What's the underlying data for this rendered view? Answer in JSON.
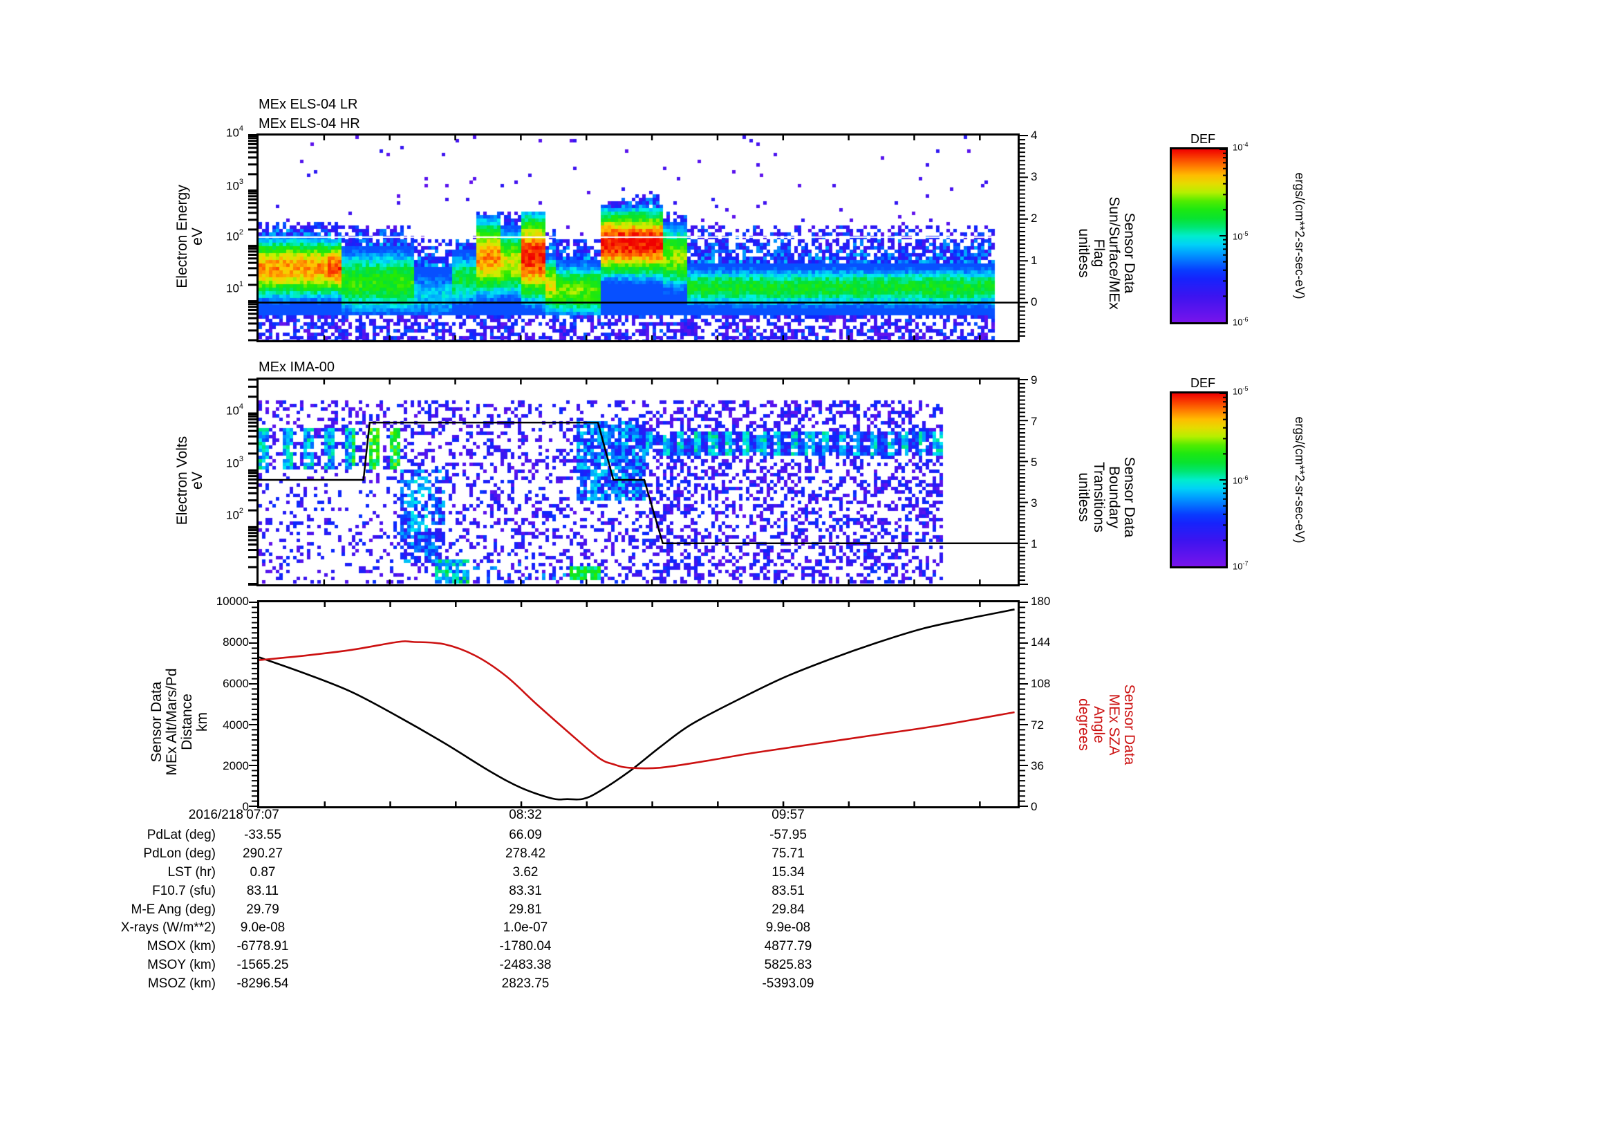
{
  "chart_data": [
    {
      "id": "els",
      "type": "heatmap",
      "titles": [
        "MEx ELS-04 LR",
        "MEx ELS-04 HR"
      ],
      "ylabel": [
        "Electron Energy",
        "eV"
      ],
      "yscale": "log",
      "ylim": [
        2,
        10000
      ],
      "yticks": [
        {
          "base": "10",
          "exp": "1",
          "value": 10
        },
        {
          "base": "10",
          "exp": "2",
          "value": 100
        },
        {
          "base": "10",
          "exp": "3",
          "value": 1000
        },
        {
          "base": "10",
          "exp": "4",
          "value": 10000
        }
      ],
      "y2label": [
        "Sensor Data",
        "Sun/Surface/MEx",
        "Flag",
        "unitless"
      ],
      "y2lim": [
        -0.9,
        4
      ],
      "y2ticks": [
        "0",
        "1",
        "2",
        "3",
        "4"
      ],
      "flag_line": {
        "value": 0,
        "color": "#000000"
      },
      "white_line_energy": 150,
      "colorbar": {
        "title": "DEF",
        "min_label": {
          "base": "10",
          "exp": "-6"
        },
        "mid_label": {
          "base": "10",
          "exp": "-5"
        },
        "max_label": {
          "base": "10",
          "exp": "-4"
        },
        "units": "ergs/(cm**2-sr-sec-eV)"
      },
      "features": [
        {
          "t_start": "07:07",
          "t_end": "07:30",
          "desc": "hot core ~40 eV, yellow/orange"
        },
        {
          "t_start": "07:30",
          "t_end": "07:52",
          "desc": "green band 8-100 eV"
        },
        {
          "t_start": "07:52",
          "t_end": "08:05",
          "desc": "depleted, sparse blue"
        },
        {
          "t_start": "08:05",
          "t_end": "08:25",
          "desc": "red intense ~100-200 eV bursts"
        },
        {
          "t_start": "08:25",
          "t_end": "08:45",
          "desc": "green/yellow lower energy"
        },
        {
          "t_start": "08:48",
          "t_end": "09:05",
          "desc": "red intense 60-300 eV, peak ~1000 eV"
        },
        {
          "t_start": "09:05",
          "t_end": "11:12",
          "desc": "steady green band 8-40 eV, blue above"
        }
      ]
    },
    {
      "id": "ima",
      "type": "heatmap",
      "titles": [
        "MEx IMA-00"
      ],
      "ylabel": [
        "Electron Volts",
        "eV"
      ],
      "yscale": "log",
      "ylim": [
        10,
        40000
      ],
      "yticks": [
        {
          "base": "10",
          "exp": "2",
          "value": 100
        },
        {
          "base": "10",
          "exp": "3",
          "value": 1000
        },
        {
          "base": "10",
          "exp": "4",
          "value": 10000
        }
      ],
      "y2label": [
        "Sensor Data",
        "Boundary",
        "Transitions",
        "unitless"
      ],
      "y2lim": [
        -1,
        9
      ],
      "y2ticks": [
        "1",
        "3",
        "5",
        "7",
        "9"
      ],
      "boundary_line": {
        "color": "#000000",
        "points": [
          [
            "07:07",
            4.1
          ],
          [
            "07:41",
            4.1
          ],
          [
            "07:43",
            6.9
          ],
          [
            "08:57",
            6.9
          ],
          [
            "09:02",
            4.1
          ],
          [
            "09:12",
            4.1
          ],
          [
            "09:18",
            1.0
          ],
          [
            "11:14",
            1.0
          ]
        ]
      },
      "colorbar": {
        "title": "DEF",
        "min_label": {
          "base": "10",
          "exp": "-7"
        },
        "mid_label": {
          "base": "10",
          "exp": "-6"
        },
        "max_label": {
          "base": "10",
          "exp": "-5"
        },
        "units": "ergs/(cm**2-sr-sec-eV)"
      }
    },
    {
      "id": "orbit",
      "type": "line",
      "ylabel": [
        "Sensor Data",
        "MEx Alt/Mars/Pd",
        "Distance",
        "km"
      ],
      "ylim": [
        0,
        10000
      ],
      "yticks": [
        "0",
        "2000",
        "4000",
        "6000",
        "8000",
        "10000"
      ],
      "y2label": [
        "Sensor Data",
        "MEx SZA",
        "Angle",
        "degrees"
      ],
      "y2lim": [
        0,
        180
      ],
      "y2ticks": [
        "0",
        "36",
        "72",
        "108",
        "144",
        "180"
      ],
      "xlabels": [
        "07:07",
        "08:32",
        "09:57"
      ],
      "series": [
        {
          "name": "MEx Alt/Mars/Pd Distance (km)",
          "color": "#000000",
          "axis": "left",
          "x_min": [
            0,
            15,
            30,
            45,
            60,
            75,
            85,
            95,
            100,
            105,
            110,
            120,
            130,
            140,
            155,
            170,
            185,
            200,
            215,
            230,
            245
          ],
          "values": [
            7300,
            6500,
            5600,
            4400,
            3100,
            1700,
            900,
            380,
            350,
            360,
            700,
            1700,
            2900,
            4000,
            5200,
            6300,
            7200,
            8000,
            8700,
            9200,
            9650
          ]
        },
        {
          "name": "MEx SZA Angle (deg)",
          "color": "#cc1111",
          "axis": "right",
          "x_min": [
            0,
            15,
            30,
            45,
            50,
            60,
            70,
            80,
            90,
            100,
            110,
            115,
            120,
            130,
            145,
            160,
            180,
            200,
            220,
            245
          ],
          "values": [
            129,
            133,
            138,
            145,
            145,
            143,
            133,
            115,
            90,
            66,
            43,
            37,
            34,
            34,
            40,
            47,
            55,
            63,
            71,
            83
          ]
        }
      ],
      "x_range_min": [
        0,
        246
      ]
    }
  ],
  "time": {
    "date": "2016/218",
    "ticks": [
      "07:07",
      "08:32",
      "09:57"
    ]
  },
  "ephemeris": {
    "rows": [
      {
        "label": "PdLat (deg)",
        "values": [
          "-33.55",
          "66.09",
          "-57.95"
        ]
      },
      {
        "label": "PdLon (deg)",
        "values": [
          "290.27",
          "278.42",
          "75.71"
        ]
      },
      {
        "label": "LST (hr)",
        "values": [
          "0.87",
          "3.62",
          "15.34"
        ]
      },
      {
        "label": "F10.7 (sfu)",
        "values": [
          "83.11",
          "83.31",
          "83.51"
        ]
      },
      {
        "label": "M-E Ang (deg)",
        "values": [
          "29.79",
          "29.81",
          "29.84"
        ]
      },
      {
        "label": "X-rays (W/m**2)",
        "values": [
          "9.0e-08",
          "1.0e-07",
          "9.9e-08"
        ]
      },
      {
        "label": "MSOX (km)",
        "values": [
          "-6778.91",
          "-1780.04",
          "4877.79"
        ]
      },
      {
        "label": "MSOY (km)",
        "values": [
          "-1565.25",
          "-2483.38",
          "5825.83"
        ]
      },
      {
        "label": "MSOZ (km)",
        "values": [
          "-8296.54",
          "2823.75",
          "-5393.09"
        ]
      }
    ]
  },
  "colors": {
    "sza_red": "#cc1111",
    "axis": "#000000"
  }
}
